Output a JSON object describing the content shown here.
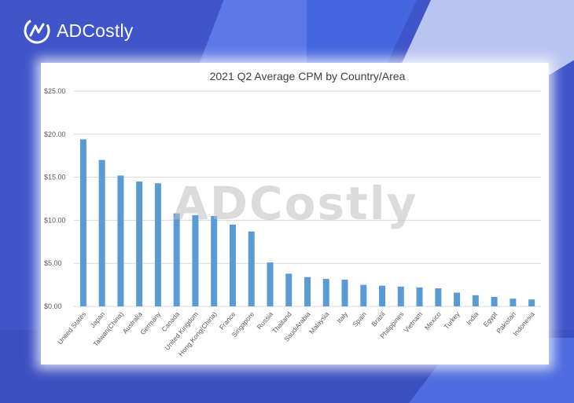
{
  "brand": {
    "name": "ADCostly",
    "watermark": "ADCostly"
  },
  "colors": {
    "bar": "#5b9bd5",
    "grid": "#d9d9d9",
    "background": "#3f55c9"
  },
  "chart_data": {
    "type": "bar",
    "title": "2021 Q2 Average CPM by Country/Area",
    "xlabel": "",
    "ylabel": "",
    "ylim": [
      0,
      25
    ],
    "yticks": [
      "$0.00",
      "$5.00",
      "$10.00",
      "$15.00",
      "$20.00",
      "$25.00"
    ],
    "grid": true,
    "legend": "none",
    "categories": [
      "United States",
      "Japan",
      "Taiwan(China)",
      "Australia",
      "Germany",
      "Canada",
      "United Kingdom",
      "Hong Kong(China)",
      "France",
      "Singapore",
      "Russia",
      "Thailand",
      "SaudiArabia",
      "Malaysia",
      "Italy",
      "Spain",
      "Brazil",
      "Philippines",
      "Vietnam",
      "Mexico",
      "Turkey",
      "India",
      "Egypt",
      "Pakistan",
      "Indonesia"
    ],
    "values": [
      19.4,
      17.0,
      15.2,
      14.5,
      14.3,
      10.8,
      10.6,
      10.5,
      9.5,
      8.7,
      5.1,
      3.8,
      3.4,
      3.2,
      3.1,
      2.5,
      2.4,
      2.3,
      2.2,
      2.1,
      1.6,
      1.3,
      1.1,
      0.9,
      0.8
    ]
  }
}
